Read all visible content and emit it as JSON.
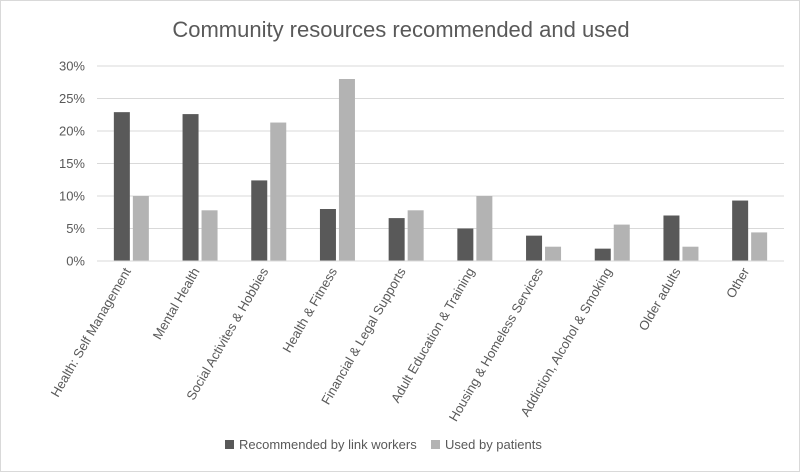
{
  "chart_data": {
    "type": "bar",
    "title": "Community resources recommended and used",
    "xlabel": "",
    "ylabel": "",
    "ylim": [
      0,
      30
    ],
    "yticks": [
      "0%",
      "5%",
      "10%",
      "15%",
      "20%",
      "25%",
      "30%"
    ],
    "grid": true,
    "legend_position": "bottom",
    "categories": [
      "Health: Self Management",
      "Mental Health",
      "Social Activites & Hobbies",
      "Health & Fitness",
      "Financial & Legal Supports",
      "Adult Education & Training",
      "Housing & Homeless Services",
      "Addiction, Alcohol & Smoking",
      "Older adults",
      "Other"
    ],
    "series": [
      {
        "name": "Recommended by link workers",
        "color": "#595959",
        "values": [
          22.9,
          22.6,
          12.4,
          8.0,
          6.6,
          5.0,
          3.9,
          1.9,
          7.0,
          9.3
        ]
      },
      {
        "name": "Used by patients",
        "color": "#b3b3b3",
        "values": [
          10.0,
          7.8,
          21.3,
          28.0,
          7.8,
          10.0,
          2.2,
          5.6,
          2.2,
          4.4
        ]
      }
    ]
  }
}
